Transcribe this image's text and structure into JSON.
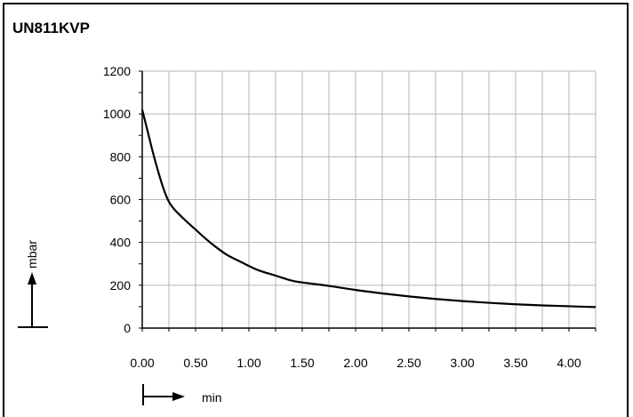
{
  "chart_data": {
    "type": "line",
    "title": "UN811KVP",
    "xlabel": "min",
    "ylabel": "mbar",
    "xlim": [
      0,
      4.25
    ],
    "ylim": [
      0,
      1200
    ],
    "xticks": [
      "0.00",
      "0.50",
      "1.00",
      "1.50",
      "2.00",
      "2.50",
      "3.00",
      "3.50",
      "4.00"
    ],
    "yticks": [
      "0",
      "200",
      "400",
      "600",
      "800",
      "1000",
      "1200"
    ],
    "grid": true,
    "series": [
      {
        "color": "#000000",
        "points": [
          [
            0.0,
            1020
          ],
          [
            0.05,
            920
          ],
          [
            0.1,
            820
          ],
          [
            0.15,
            730
          ],
          [
            0.2,
            650
          ],
          [
            0.25,
            590
          ],
          [
            0.3,
            555
          ],
          [
            0.4,
            505
          ],
          [
            0.5,
            460
          ],
          [
            0.6,
            415
          ],
          [
            0.7,
            375
          ],
          [
            0.8,
            340
          ],
          [
            0.9,
            315
          ],
          [
            1.0,
            290
          ],
          [
            1.1,
            268
          ],
          [
            1.25,
            245
          ],
          [
            1.4,
            222
          ],
          [
            1.5,
            213
          ],
          [
            1.75,
            197
          ],
          [
            2.0,
            178
          ],
          [
            2.25,
            162
          ],
          [
            2.5,
            148
          ],
          [
            2.75,
            136
          ],
          [
            3.0,
            126
          ],
          [
            3.25,
            118
          ],
          [
            3.5,
            111
          ],
          [
            3.75,
            106
          ],
          [
            4.0,
            102
          ],
          [
            4.25,
            98
          ]
        ]
      }
    ]
  }
}
